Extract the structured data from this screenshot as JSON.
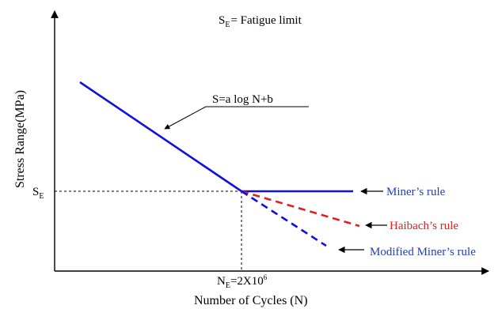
{
  "note": {
    "symbol": "S",
    "subscript": "E",
    "rest": "= Fatigue limit"
  },
  "y_axis": {
    "label": "Stress Range(MPa)"
  },
  "x_axis": {
    "label": "Number of Cycles (N)"
  },
  "equation": "S=a log N+b",
  "se_tick": {
    "symbol": "S",
    "subscript": "E"
  },
  "ne_tick": {
    "symbol": "N",
    "subscript": "E",
    "value": "=2X10",
    "exponent": "6"
  },
  "rules": {
    "miner": {
      "label": "Miner’s rule",
      "color": "#1f3fbf"
    },
    "haibach": {
      "label": "Haibach’s rule",
      "color": "#e02020"
    },
    "modified_miner": {
      "label": "Modified Miner’s rule",
      "color": "#1f3fbf"
    }
  },
  "colors": {
    "sn_line": "#1010e0",
    "axis": "#000000"
  }
}
